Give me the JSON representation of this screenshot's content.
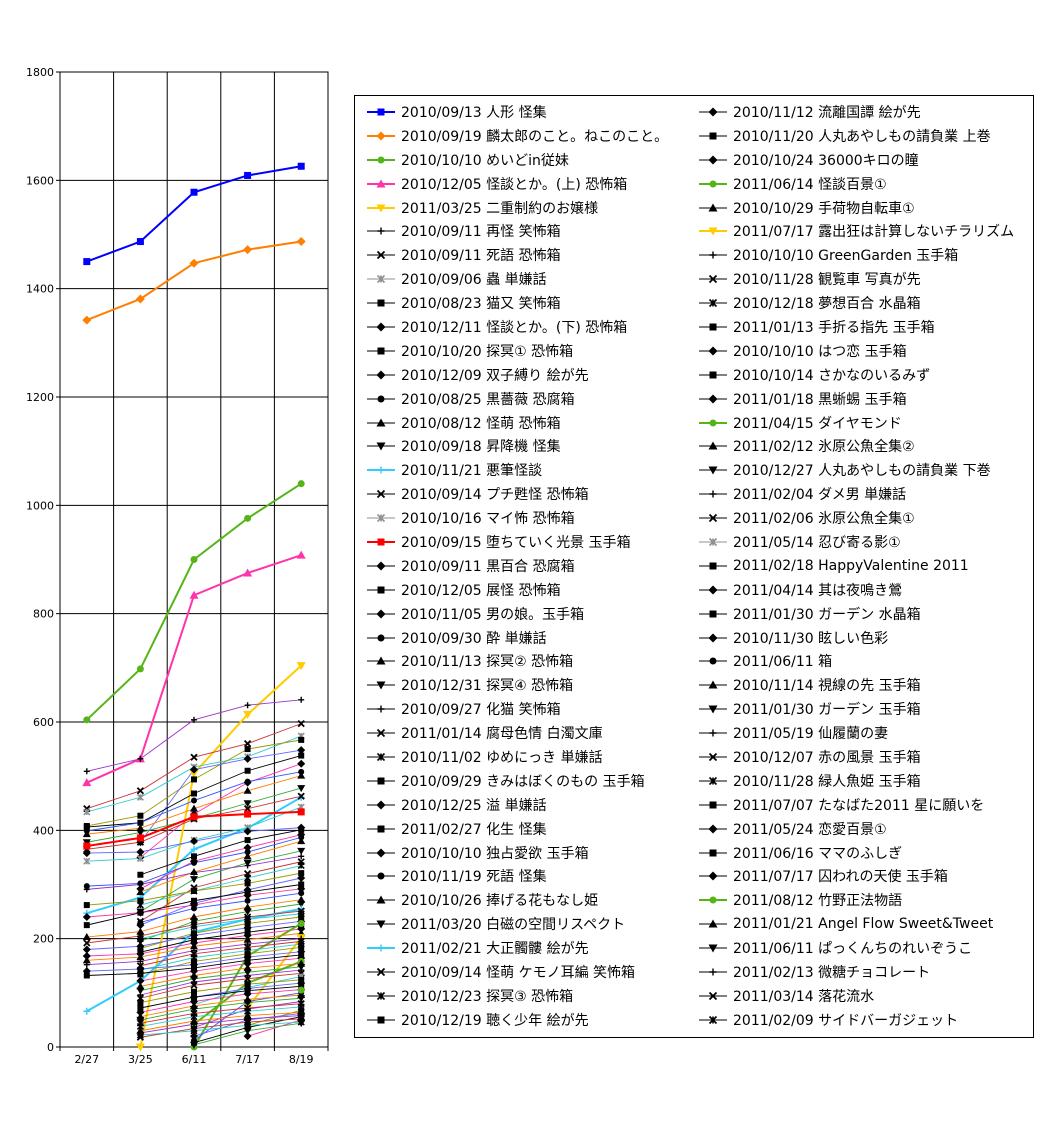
{
  "chart_data": {
    "type": "line",
    "x": [
      "2/27",
      "3/25",
      "6/11",
      "7/17",
      "8/19"
    ],
    "ylim": [
      0,
      1800
    ],
    "yticks": [
      "0",
      "200",
      "400",
      "600",
      "800",
      "1000",
      "1200",
      "1400",
      "1600",
      "1800"
    ],
    "grid": true,
    "legend_position": "right",
    "series": [
      {
        "name": "2010/09/13 人形 怪集",
        "color": "#0000ff",
        "marker": "square",
        "emph": true,
        "values": [
          1450,
          1487,
          1578,
          1609,
          1626
        ]
      },
      {
        "name": "2010/09/19 麟太郎のこと。ねこのこと。",
        "color": "#ff7f00",
        "marker": "diamond",
        "emph": true,
        "values": [
          1342,
          1381,
          1447,
          1472,
          1487
        ]
      },
      {
        "name": "2010/10/10 めいどin従妹",
        "color": "#55b516",
        "marker": "circle",
        "emph": true,
        "values": [
          604,
          698,
          900,
          976,
          1040
        ]
      },
      {
        "name": "2010/12/05 怪談とか。(上) 恐怖箱",
        "color": "#ff33aa",
        "marker": "triangle",
        "emph": true,
        "values": [
          488,
          532,
          834,
          875,
          908
        ]
      },
      {
        "name": "2011/03/25 二重制約のお嬢様",
        "color": "#ffcc00",
        "marker": "triangle-down",
        "emph": true,
        "values": [
          null,
          0,
          505,
          614,
          704
        ]
      },
      {
        "name": "2010/09/11 再怪 笑怖箱",
        "color": "#000000",
        "marker": "plus",
        "values": [
          509,
          532,
          604,
          631,
          641
        ]
      },
      {
        "name": "2010/09/11 死語 恐怖箱",
        "color": "#000000",
        "marker": "x",
        "values": [
          440,
          473,
          535,
          560,
          597
        ]
      },
      {
        "name": "2010/09/06 蟲 単嫌話",
        "color": "#909090",
        "marker": "star",
        "values": [
          434,
          461,
          517,
          536,
          574
        ]
      },
      {
        "name": "2010/08/23 猫又 笑怖箱",
        "color": "#000000",
        "marker": "square",
        "values": [
          408,
          427,
          494,
          550,
          567
        ]
      },
      {
        "name": "2010/12/11 怪談とか。(下) 恐怖箱",
        "color": "#000000",
        "marker": "diamond",
        "values": [
          null,
          378,
          512,
          532,
          548
        ]
      },
      {
        "name": "2010/10/20 探冥① 恐怖箱",
        "color": "#000000",
        "marker": "square",
        "values": [
          406,
          414,
          468,
          510,
          538
        ]
      },
      {
        "name": "2010/12/09 双子縛り 絵が先",
        "color": "#000000",
        "marker": "diamond",
        "values": [
          null,
          350,
          430,
          488,
          523
        ]
      },
      {
        "name": "2010/08/25 黒薔薇 恐腐箱",
        "color": "#000000",
        "marker": "circle",
        "values": [
          399,
          414,
          455,
          490,
          508
        ]
      },
      {
        "name": "2010/08/12 怪萌 恐怖箱",
        "color": "#000000",
        "marker": "triangle",
        "values": [
          393,
          404,
          440,
          473,
          501
        ]
      },
      {
        "name": "2010/09/18 昇降機 怪集",
        "color": "#000000",
        "marker": "triangle-down",
        "values": [
          378,
          396,
          422,
          450,
          478
        ]
      },
      {
        "name": "2010/11/21 悪筆怪談",
        "color": "#33ccff",
        "marker": "plus",
        "emph": true,
        "values": [
          247,
          276,
          365,
          404,
          461
        ]
      },
      {
        "name": "2010/09/14 プチ甦怪 恐怖箱",
        "color": "#000000",
        "marker": "x",
        "values": [
          365,
          378,
          421,
          440,
          463
        ]
      },
      {
        "name": "2010/10/16 マイ怖 恐怖箱",
        "color": "#909090",
        "marker": "star",
        "values": [
          343,
          348,
          382,
          405,
          443
        ]
      },
      {
        "name": "2010/09/15 堕ちていく光景 玉手箱",
        "color": "#ff0000",
        "marker": "square",
        "emph": true,
        "values": [
          371,
          386,
          425,
          430,
          434
        ]
      },
      {
        "name": "2010/09/11 黒百合 恐腐箱",
        "color": "#000000",
        "marker": "diamond",
        "values": [
          358,
          360,
          380,
          398,
          405
        ]
      },
      {
        "name": "2010/12/05 展怪 恐怖箱",
        "color": "#000000",
        "marker": "square",
        "values": [
          null,
          318,
          352,
          382,
          401
        ]
      },
      {
        "name": "2010/11/05 男の娘。玉手箱",
        "color": "#000000",
        "marker": "diamond",
        "values": [
          null,
          292,
          343,
          368,
          392
        ]
      },
      {
        "name": "2010/09/30 酔 単嫌話",
        "color": "#000000",
        "marker": "circle",
        "values": [
          297,
          302,
          340,
          360,
          387
        ]
      },
      {
        "name": "2010/11/13 探冥② 恐怖箱",
        "color": "#000000",
        "marker": "triangle",
        "values": [
          null,
          286,
          323,
          352,
          380
        ]
      },
      {
        "name": "2010/12/31 探冥④ 恐怖箱",
        "color": "#000000",
        "marker": "triangle-down",
        "values": [
          null,
          250,
          310,
          340,
          362
        ]
      },
      {
        "name": "2010/09/27 化猫 笑怖箱",
        "color": "#000000",
        "marker": "plus",
        "values": [
          291,
          300,
          322,
          335,
          352
        ]
      },
      {
        "name": "2011/01/14 腐母色情 白濁文庫",
        "color": "#000000",
        "marker": "x",
        "values": [
          null,
          232,
          294,
          320,
          342
        ]
      },
      {
        "name": "2010/11/02 ゆめにっき 単嫌話",
        "color": "#000000",
        "marker": "star",
        "values": [
          null,
          262,
          288,
          312,
          335
        ]
      },
      {
        "name": "2010/09/29 きみはぼくのもの 玉手箱",
        "color": "#000000",
        "marker": "square",
        "values": [
          262,
          270,
          288,
          302,
          321
        ]
      },
      {
        "name": "2010/12/25 溢 単嫌話",
        "color": "#000000",
        "marker": "diamond",
        "values": [
          null,
          225,
          265,
          290,
          312
        ]
      },
      {
        "name": "2011/02/27 化生 怪集",
        "color": "#000000",
        "marker": "square",
        "values": [
          225,
          248,
          270,
          286,
          300
        ]
      },
      {
        "name": "2010/10/10 独占愛欲 玉手箱",
        "color": "#000000",
        "marker": "diamond",
        "values": [
          240,
          248,
          262,
          280,
          292
        ]
      },
      {
        "name": "2010/11/19 死語 怪集",
        "color": "#000000",
        "marker": "circle",
        "values": [
          null,
          230,
          256,
          270,
          284
        ]
      },
      {
        "name": "2010/10/26 捧げる花もなし姫",
        "color": "#000000",
        "marker": "triangle",
        "values": [
          203,
          213,
          240,
          258,
          272
        ]
      },
      {
        "name": "2011/03/20 白磁の空間リスペクト",
        "color": "#000000",
        "marker": "triangle-down",
        "values": [
          null,
          195,
          232,
          250,
          264
        ]
      },
      {
        "name": "2011/02/21 大正髑髏 絵が先",
        "color": "#33ccff",
        "marker": "plus",
        "emph": true,
        "values": [
          66,
          122,
          212,
          236,
          255
        ]
      },
      {
        "name": "2010/09/14 怪萌 ケモノ耳編 笑怖箱",
        "color": "#000000",
        "marker": "x",
        "values": [
          192,
          205,
          226,
          240,
          251
        ]
      },
      {
        "name": "2010/12/23 探冥③ 恐怖箱",
        "color": "#000000",
        "marker": "star",
        "values": [
          null,
          200,
          222,
          236,
          246
        ]
      },
      {
        "name": "2010/12/19 聴く少年 絵が先",
        "color": "#000000",
        "marker": "square",
        "values": [
          null,
          182,
          210,
          228,
          240
        ]
      },
      {
        "name": "2010/11/12 流離国譚 絵が先",
        "color": "#000000",
        "marker": "diamond",
        "values": [
          180,
          186,
          206,
          220,
          232
        ]
      },
      {
        "name": "2010/11/20 人丸あやしもの請負業 上巻",
        "color": "#000000",
        "marker": "square",
        "values": [
          null,
          175,
          198,
          212,
          224
        ]
      },
      {
        "name": "2010/10/24 36000キロの瞳",
        "color": "#000000",
        "marker": "diamond",
        "values": [
          168,
          172,
          192,
          206,
          218
        ]
      },
      {
        "name": "2011/06/14 怪談百景①",
        "color": "#55b516",
        "marker": "circle",
        "emph": true,
        "values": [
          null,
          null,
          0,
          168,
          228
        ]
      },
      {
        "name": "2010/10/29 手荷物自転車①",
        "color": "#000000",
        "marker": "triangle",
        "values": [
          160,
          166,
          186,
          198,
          210
        ]
      },
      {
        "name": "2011/07/17 露出狂は計算しないチラリズム",
        "color": "#ffcc00",
        "marker": "triangle-down",
        "emph": true,
        "values": [
          null,
          null,
          null,
          72,
          202
        ]
      },
      {
        "name": "2010/10/10 GreenGarden 玉手箱",
        "color": "#000000",
        "marker": "plus",
        "values": [
          152,
          158,
          178,
          190,
          200
        ]
      },
      {
        "name": "2010/11/28 観覧車 写真が先",
        "color": "#000000",
        "marker": "x",
        "values": [
          null,
          150,
          172,
          184,
          195
        ]
      },
      {
        "name": "2010/12/18 夢想百合 水晶箱",
        "color": "#000000",
        "marker": "star",
        "values": [
          null,
          142,
          165,
          178,
          190
        ]
      },
      {
        "name": "2011/01/13 手折る指先 玉手箱",
        "color": "#000000",
        "marker": "square",
        "values": [
          null,
          134,
          158,
          172,
          184
        ]
      },
      {
        "name": "2010/10/10 はつ恋 玉手箱",
        "color": "#000000",
        "marker": "diamond",
        "values": [
          140,
          144,
          152,
          166,
          176
        ]
      },
      {
        "name": "2010/10/14 さかなのいるみず",
        "color": "#000000",
        "marker": "square",
        "values": [
          132,
          136,
          146,
          160,
          170
        ]
      },
      {
        "name": "2011/01/18 黒蜥蜴 玉手箱",
        "color": "#000000",
        "marker": "diamond",
        "values": [
          null,
          122,
          140,
          154,
          164
        ]
      },
      {
        "name": "2011/04/15 ダイヤモンド",
        "color": "#55b516",
        "marker": "circle",
        "emph": true,
        "values": [
          null,
          null,
          42,
          118,
          158
        ]
      },
      {
        "name": "2011/02/12 氷原公魚全集②",
        "color": "#000000",
        "marker": "triangle",
        "values": [
          null,
          112,
          132,
          146,
          154
        ]
      },
      {
        "name": "2010/12/27 人丸あやしもの請負業 下巻",
        "color": "#000000",
        "marker": "triangle-down",
        "values": [
          null,
          104,
          126,
          138,
          148
        ]
      },
      {
        "name": "2011/02/04 ダメ男 単嫌話",
        "color": "#000000",
        "marker": "plus",
        "values": [
          null,
          96,
          120,
          132,
          142
        ]
      },
      {
        "name": "2011/02/06 氷原公魚全集①",
        "color": "#000000",
        "marker": "x",
        "values": [
          null,
          90,
          114,
          126,
          136
        ]
      },
      {
        "name": "2011/05/14 忍び寄る影①",
        "color": "#909090",
        "marker": "star",
        "values": [
          null,
          null,
          78,
          110,
          130
        ]
      },
      {
        "name": "2011/02/18 HappyValentine 2011",
        "color": "#000000",
        "marker": "square",
        "values": [
          null,
          82,
          102,
          116,
          124
        ]
      },
      {
        "name": "2011/04/14 其は夜鳴き鶯",
        "color": "#000000",
        "marker": "diamond",
        "values": [
          null,
          null,
          92,
          108,
          118
        ]
      },
      {
        "name": "2011/01/30 ガーデン 水晶箱",
        "color": "#000000",
        "marker": "square",
        "values": [
          null,
          72,
          92,
          104,
          112
        ]
      },
      {
        "name": "2010/11/30 眩しい色彩",
        "color": "#000000",
        "marker": "diamond",
        "values": [
          null,
          64,
          84,
          98,
          106
        ]
      },
      {
        "name": "2011/06/11 箱",
        "color": "#000000",
        "marker": "circle",
        "values": [
          null,
          null,
          12,
          84,
          100
        ]
      },
      {
        "name": "2010/11/14 視線の先 玉手箱",
        "color": "#000000",
        "marker": "triangle",
        "values": [
          null,
          56,
          76,
          88,
          96
        ]
      },
      {
        "name": "2011/01/30 ガーデン 玉手箱",
        "color": "#000000",
        "marker": "triangle-down",
        "values": [
          null,
          50,
          70,
          82,
          90
        ]
      },
      {
        "name": "2011/05/19 仙履蘭の妻",
        "color": "#000000",
        "marker": "plus",
        "values": [
          null,
          null,
          36,
          70,
          84
        ]
      },
      {
        "name": "2010/12/07 赤の風景 玉手箱",
        "color": "#000000",
        "marker": "x",
        "values": [
          null,
          44,
          62,
          72,
          80
        ]
      },
      {
        "name": "2010/11/28 緑人魚姫 玉手箱",
        "color": "#000000",
        "marker": "star",
        "values": [
          null,
          38,
          56,
          66,
          74
        ]
      },
      {
        "name": "2011/07/07 たなばた2011 星に願いを",
        "color": "#000000",
        "marker": "square",
        "values": [
          null,
          null,
          null,
          40,
          68
        ]
      },
      {
        "name": "2011/05/24 恋愛百景①",
        "color": "#000000",
        "marker": "diamond",
        "values": [
          null,
          null,
          20,
          50,
          62
        ]
      },
      {
        "name": "2011/06/16 ママのふしぎ",
        "color": "#000000",
        "marker": "square",
        "values": [
          null,
          null,
          8,
          36,
          56
        ]
      },
      {
        "name": "2011/07/17 囚われの天使 玉手箱",
        "color": "#000000",
        "marker": "diamond",
        "values": [
          null,
          null,
          null,
          20,
          50
        ]
      },
      {
        "name": "2011/08/12 竹野正法物語",
        "color": "#55b516",
        "marker": "circle",
        "emph": true,
        "values": [
          null,
          null,
          null,
          null,
          105
        ]
      },
      {
        "name": "2011/01/21 Angel Flow Sweet&Tweet",
        "color": "#000000",
        "marker": "triangle",
        "values": [
          null,
          30,
          48,
          58,
          64
        ]
      },
      {
        "name": "2011/06/11 ぱっくんちのれいぞうこ",
        "color": "#000000",
        "marker": "triangle-down",
        "values": [
          null,
          null,
          4,
          30,
          44
        ]
      },
      {
        "name": "2011/02/13 微糖チョコレート",
        "color": "#000000",
        "marker": "plus",
        "values": [
          null,
          26,
          42,
          52,
          58
        ]
      },
      {
        "name": "2011/03/14 落花流水",
        "color": "#000000",
        "marker": "x",
        "values": [
          null,
          18,
          34,
          46,
          52
        ]
      },
      {
        "name": "2011/02/09 サイドバーガジェット",
        "color": "#000000",
        "marker": "star",
        "values": [
          null,
          22,
          30,
          40,
          46
        ]
      }
    ]
  }
}
